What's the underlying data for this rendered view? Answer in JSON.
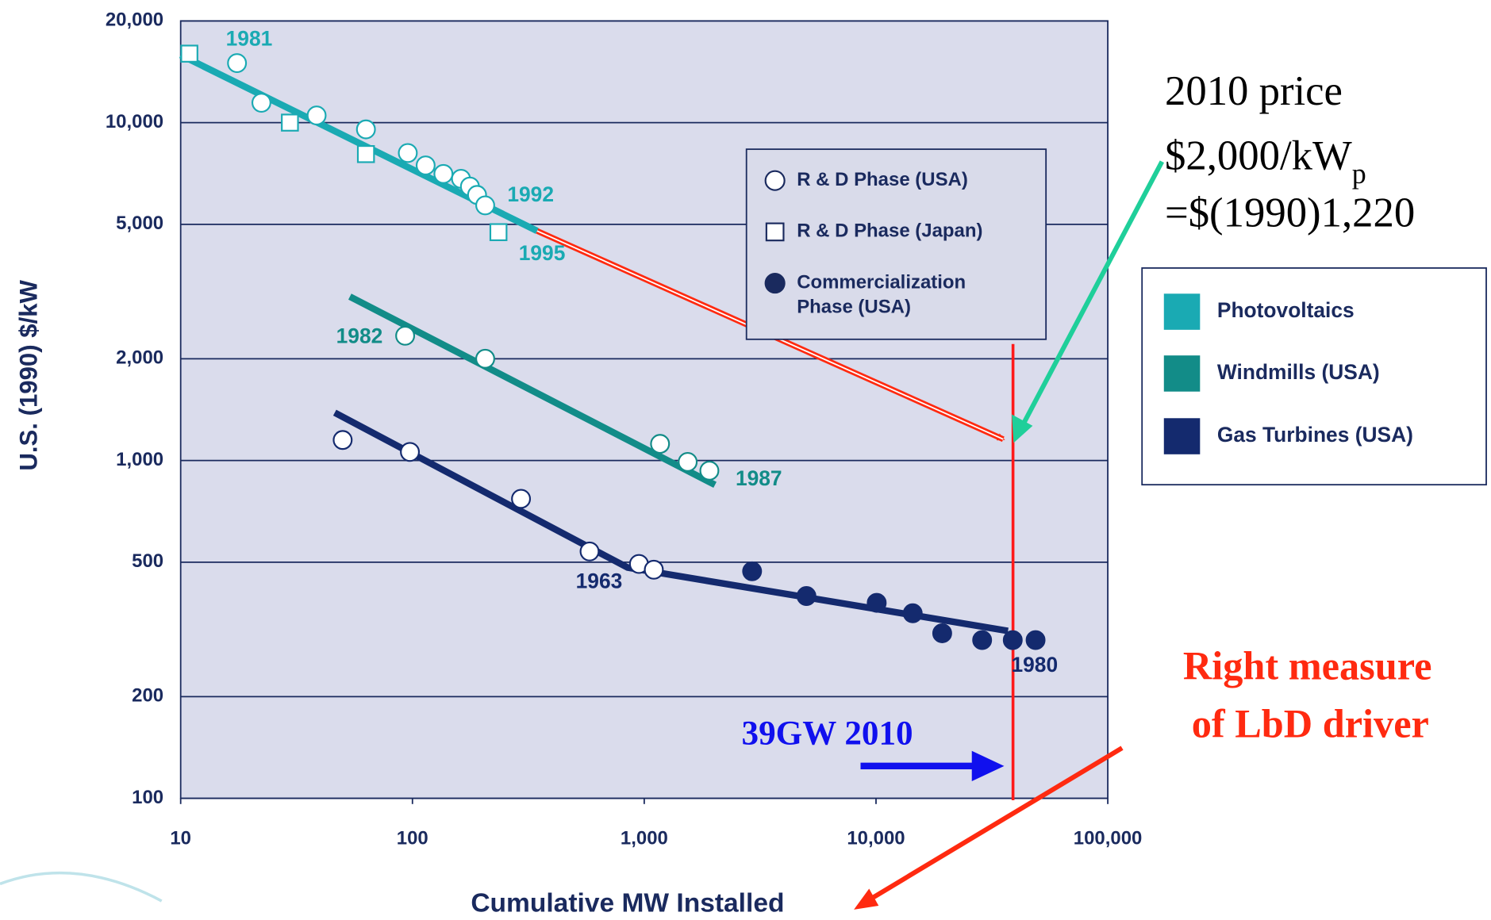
{
  "chart_data": {
    "type": "scatter",
    "x_label": "Cumulative MW Installed",
    "y_label": "U.S. (1990) $/kW",
    "log_x": true,
    "log_y": true,
    "grid": true,
    "xlim": [
      10,
      100000
    ],
    "ylim": [
      100,
      20000
    ],
    "xticks": [
      10,
      100,
      {
        "value": 1000,
        "label": "1,000"
      },
      {
        "value": 10000,
        "label": "10,000"
      },
      {
        "value": 100000,
        "label": "100,000"
      }
    ],
    "yticks": [
      100,
      200,
      500,
      {
        "value": 1000,
        "label": "1,000"
      },
      {
        "value": 2000,
        "label": "2,000"
      },
      {
        "value": 5000,
        "label": "5,000"
      },
      {
        "value": 10000,
        "label": "10,000"
      },
      {
        "value": 20000,
        "label": "20,000"
      }
    ],
    "phases": [
      {
        "label": [
          "R & D Phase (USA)"
        ],
        "marker": "circle-open"
      },
      {
        "label": [
          "R & D Phase (Japan)"
        ],
        "marker": "square-open"
      },
      {
        "label": [
          "Commercialization",
          "Phase (USA)"
        ],
        "marker": "circle-filled"
      }
    ],
    "technologies": [
      {
        "name": "Photovoltaics",
        "color": "#1aaab3",
        "series": [
          {
            "phase": 0,
            "x": [
              17.5,
              22.3,
              38.6,
              63,
              95.5,
              114,
              136,
              162,
              177,
              190,
              206
            ],
            "values": [
              15000,
              11450,
              10500,
              9550,
              8130,
              7470,
              7050,
              6820,
              6470,
              6110,
              5690
            ]
          },
          {
            "phase": 1,
            "x": [
              10.9,
              29.6,
              63,
              235
            ],
            "values": [
              16000,
              10000,
              8070,
              4740
            ]
          }
        ],
        "trend": {
          "x": [
            10,
            345
          ],
          "values": [
            15850,
            4780
          ]
        }
      },
      {
        "name": "Windmills (USA)",
        "color": "#128c88",
        "series": [
          {
            "phase": 0,
            "x": [
              93,
              206,
              1170,
              1540,
              1910
            ],
            "values": [
              2340,
              2000,
              1120,
              990,
              933
            ]
          }
        ],
        "trend": {
          "x": [
            53.7,
            2020
          ],
          "values": [
            3055,
            847
          ]
        }
      },
      {
        "name": "Gas Turbines (USA)",
        "color": "#142a6e",
        "series": [
          {
            "phase": 0,
            "x": [
              50,
              97.5,
              294,
              581,
              949,
              1100
            ],
            "values": [
              1150,
              1060,
              770,
              538,
              494,
              475
            ]
          },
          {
            "phase": 2,
            "x": [
              2920,
              5010,
              10070,
              14400,
              19300,
              28700,
              38900,
              48800
            ],
            "values": [
              470,
              397,
              379,
              353,
              308,
              294,
              294,
              294
            ]
          }
        ],
        "trend": {
          "x": [
            46.2,
            848,
            37100
          ],
          "values": [
            1385,
            482,
            313
          ]
        }
      }
    ],
    "year_labels": [
      "1981",
      "1992",
      "1995",
      "1982",
      "1987",
      "1963",
      "1980"
    ],
    "projection": {
      "color": "#ff2a10",
      "x": [
        345,
        35400
      ],
      "values": [
        4780,
        1156
      ]
    },
    "reference_x": 39000,
    "price_note": {
      "line1": "2010 price",
      "line2": "$2,000/kW",
      "line2_sub": "p",
      "line3": "=$(1990)1,220"
    },
    "measure_note": [
      "Right measure",
      "of LbD driver"
    ],
    "capacity_note": "39GW 2010"
  }
}
